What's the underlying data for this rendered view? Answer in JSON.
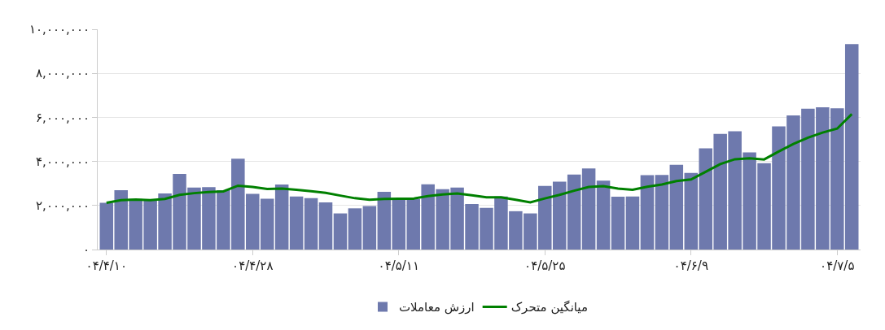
{
  "chart_data": {
    "type": "bar",
    "categories": [
      "۰۴/۴/۱۰",
      null,
      null,
      null,
      null,
      null,
      null,
      null,
      null,
      null,
      "۰۴/۴/۲۸",
      null,
      null,
      null,
      null,
      null,
      null,
      null,
      null,
      null,
      "۰۴/۵/۱۱",
      null,
      null,
      null,
      null,
      null,
      null,
      null,
      null,
      null,
      "۰۴/۵/۲۵",
      null,
      null,
      null,
      null,
      null,
      null,
      null,
      null,
      null,
      "۰۴/۶/۹",
      null,
      null,
      null,
      null,
      null,
      null,
      null,
      null,
      null,
      "۰۴/۷/۵",
      null
    ],
    "series": [
      {
        "name": "ارزش معاملات",
        "color": "#6e79ad",
        "values": [
          2120000,
          2690000,
          2300000,
          2210000,
          2550000,
          3430000,
          2810000,
          2830000,
          2690000,
          4120000,
          2530000,
          2310000,
          2950000,
          2410000,
          2330000,
          2140000,
          1640000,
          1870000,
          1970000,
          2620000,
          2300000,
          2300000,
          2960000,
          2740000,
          2810000,
          2070000,
          1890000,
          2410000,
          1740000,
          1640000,
          2890000,
          3080000,
          3400000,
          3680000,
          3130000,
          2400000,
          2410000,
          3380000,
          3390000,
          3850000,
          3480000,
          4590000,
          5250000,
          5370000,
          4410000,
          3920000,
          5590000,
          6090000,
          6390000,
          6460000,
          6410000,
          9330000
        ]
      },
      {
        "name": "میانگین متحرک",
        "type": "line",
        "color": "#008000",
        "values": [
          2120000,
          2240000,
          2270000,
          2240000,
          2300000,
          2480000,
          2560000,
          2610000,
          2640000,
          2900000,
          2840000,
          2750000,
          2770000,
          2710000,
          2650000,
          2570000,
          2450000,
          2330000,
          2260000,
          2300000,
          2310000,
          2310000,
          2430000,
          2500000,
          2550000,
          2460000,
          2370000,
          2370000,
          2260000,
          2140000,
          2320000,
          2480000,
          2670000,
          2840000,
          2880000,
          2770000,
          2710000,
          2850000,
          2950000,
          3110000,
          3180000,
          3530000,
          3880000,
          4100000,
          4140000,
          4090000,
          4450000,
          4790000,
          5080000,
          5310000,
          5490000,
          6150000
        ]
      }
    ],
    "ylim": [
      0,
      10000000
    ],
    "yticks": [
      {
        "value": 0,
        "label": "۰"
      },
      {
        "value": 2000000,
        "label": "۲,۰۰۰,۰۰۰"
      },
      {
        "value": 4000000,
        "label": "۴,۰۰۰,۰۰۰"
      },
      {
        "value": 6000000,
        "label": "۶,۰۰۰,۰۰۰"
      },
      {
        "value": 8000000,
        "label": "۸,۰۰۰,۰۰۰"
      },
      {
        "value": 10000000,
        "label": "۱۰,۰۰۰,۰۰۰"
      }
    ],
    "grid": "y",
    "legend": "bottom",
    "line_style": "solid",
    "marker": "none"
  }
}
